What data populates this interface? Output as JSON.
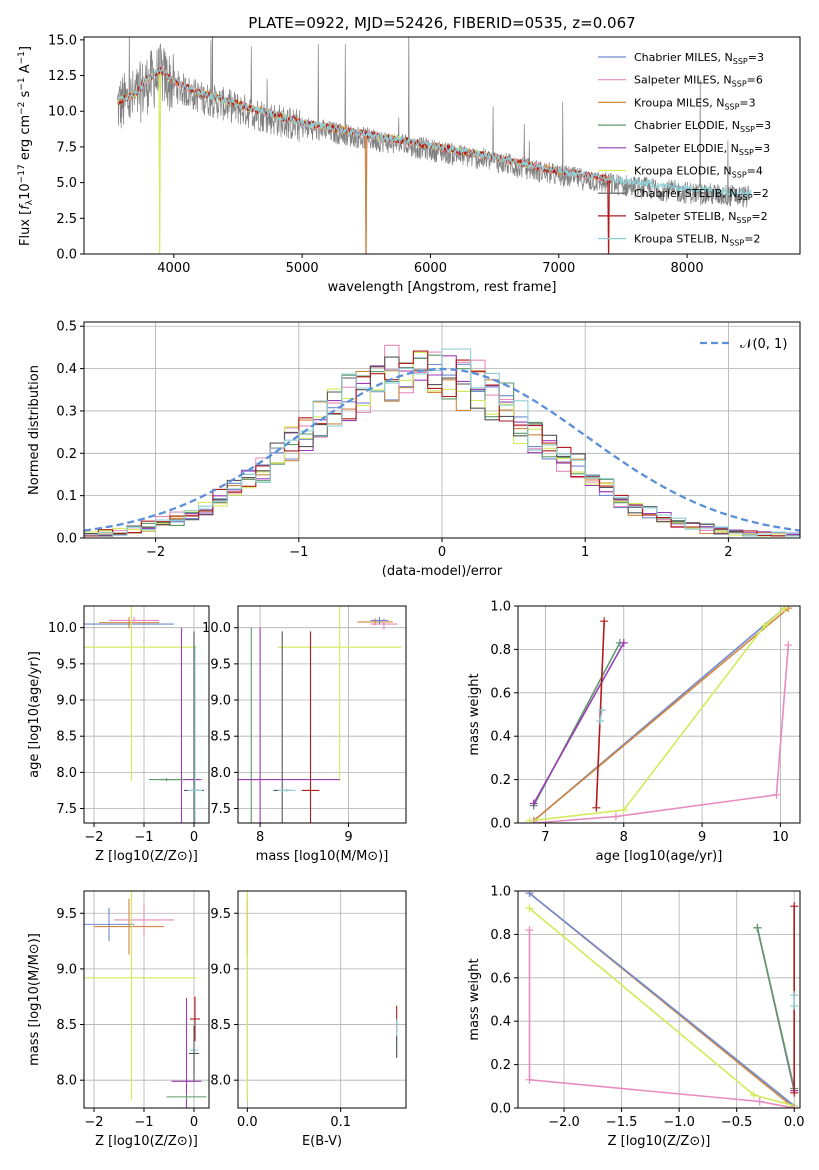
{
  "figure_title": "PLATE=0922, MJD=52426, FIBERID=0535, z=0.067",
  "colors": {
    "chabrier_miles": "#6f8ad1",
    "salpeter_miles": "#e68bbe",
    "kroupa_miles": "#d2873c",
    "chabrier_elodie": "#5e9a6a",
    "salpeter_elodie": "#9b3db7",
    "kroupa_elodie": "#d4ea5a",
    "chabrier_stelib": "#555555",
    "salpeter_stelib": "#b01c1c",
    "kroupa_stelib": "#8ecfd6",
    "data": "#808080",
    "normal": "#5b8fd9"
  },
  "chart_data": [
    {
      "id": "spectrum",
      "type": "line",
      "xlabel": "wavelength [Angstrom, rest frame]",
      "ylabel_parts": [
        "Flux [",
        "f",
        "λ",
        "10",
        "−17",
        " erg cm",
        "−2",
        " s",
        "−1",
        " A",
        "−1",
        "]"
      ],
      "xlim": [
        3300,
        8880
      ],
      "ylim": [
        0,
        15.2
      ],
      "xticks": [
        "4000",
        "5000",
        "6000",
        "7000",
        "8000"
      ],
      "yticks": [
        "0.0",
        "2.5",
        "5.0",
        "7.5",
        "10.0",
        "12.5",
        "15.0"
      ],
      "series": [
        {
          "key": "chabrier_miles",
          "name": "Chabrier MILES, N",
          "sub": "SSP",
          "suffix": "=3"
        },
        {
          "key": "salpeter_miles",
          "name": "Salpeter MILES, N",
          "sub": "SSP",
          "suffix": "=6"
        },
        {
          "key": "kroupa_miles",
          "name": "Kroupa MILES, N",
          "sub": "SSP",
          "suffix": "=3"
        },
        {
          "key": "chabrier_elodie",
          "name": "Chabrier ELODIE, N",
          "sub": "SSP",
          "suffix": "=3"
        },
        {
          "key": "salpeter_elodie",
          "name": "Salpeter ELODIE, N",
          "sub": "SSP",
          "suffix": "=3"
        },
        {
          "key": "kroupa_elodie",
          "name": "Kroupa ELODIE, N",
          "sub": "SSP",
          "suffix": "=4"
        },
        {
          "key": "chabrier_stelib",
          "name": "Chabrier STELIB, N",
          "sub": "SSP",
          "suffix": "=2"
        },
        {
          "key": "salpeter_stelib",
          "name": "Salpeter STELIB, N",
          "sub": "SSP",
          "suffix": "=2"
        },
        {
          "key": "kroupa_stelib",
          "name": "Kroupa STELIB, N",
          "sub": "SSP",
          "suffix": "=2"
        }
      ],
      "continuum": [
        [
          3560,
          10.4
        ],
        [
          3700,
          10.9
        ],
        [
          3800,
          12.0
        ],
        [
          3900,
          12.6
        ],
        [
          4000,
          11.8
        ],
        [
          4200,
          11.0
        ],
        [
          4500,
          10.2
        ],
        [
          5000,
          8.9
        ],
        [
          5500,
          8.1
        ],
        [
          6000,
          7.3
        ],
        [
          6500,
          6.5
        ],
        [
          7000,
          5.5
        ],
        [
          7500,
          4.8
        ],
        [
          8000,
          4.3
        ],
        [
          8480,
          4.0
        ]
      ],
      "model_lines": [
        {
          "key": "kroupa_elodie",
          "x0": 3560,
          "x1": 6790,
          "dip": 3890
        },
        {
          "key": "salpeter_miles",
          "x0": 3560,
          "x1": 7410,
          "dip": 5500
        },
        {
          "key": "kroupa_miles",
          "x0": 3560,
          "x1": 7400,
          "dip": 5500
        },
        {
          "key": "salpeter_stelib",
          "x0": 3560,
          "x1": 7410,
          "dip": 7390
        },
        {
          "key": "kroupa_stelib",
          "x0": 3560,
          "x1": 8500,
          "dip": 0
        }
      ]
    },
    {
      "id": "residuals",
      "type": "histogram",
      "xlabel": "(data-model)/error",
      "ylabel": "Normed distribution",
      "xlim": [
        -2.5,
        2.5
      ],
      "ylim": [
        0,
        0.51
      ],
      "xticks": [
        "−2",
        "−1",
        "0",
        "1",
        "2"
      ],
      "yticks": [
        "0.0",
        "0.1",
        "0.2",
        "0.3",
        "0.4",
        "0.5"
      ],
      "legend": "𝒩(0, 1)",
      "bin_width": 0.1
    },
    {
      "id": "age_vs_Z",
      "type": "errorbar",
      "xlabel": "Z [log10(Z/Z⊙)]",
      "ylabel": "age  [log10(age/yr)]",
      "xlim": [
        -2.2,
        0.3
      ],
      "ylim": [
        7.3,
        10.3
      ],
      "xticks": [
        "−2",
        "−1",
        "0"
      ],
      "yticks": [
        "7.5",
        "8.0",
        "8.5",
        "9.0",
        "9.5",
        "10.0"
      ],
      "points": [
        {
          "key": "chabrier_miles",
          "x": -1.3,
          "y": 10.05,
          "xerr": 0.9,
          "yerr": 0.05
        },
        {
          "key": "kroupa_miles",
          "x": -1.3,
          "y": 10.07,
          "xerr": 0.6,
          "yerr": 0.08
        },
        {
          "key": "salpeter_miles",
          "x": -1.2,
          "y": 10.1,
          "xerr": 0.5,
          "yerr": 0.05
        },
        {
          "key": "kroupa_elodie",
          "x": -1.25,
          "y": 9.73,
          "xerr": 1.3,
          "yerr": 1.85
        },
        {
          "key": "salpeter_elodie",
          "x": -0.25,
          "y": 7.9,
          "xerr": 0.4,
          "yerr": 2.1
        },
        {
          "key": "chabrier_elodie",
          "x": -0.55,
          "y": 7.9,
          "xerr": 0.35,
          "yerr": 0.02
        },
        {
          "key": "chabrier_stelib",
          "x": 0.0,
          "y": 7.75,
          "xerr": 0.2,
          "yerr": 2.2
        },
        {
          "key": "kroupa_stelib",
          "x": 0.02,
          "y": 7.75,
          "xerr": 0.15,
          "yerr": 2.0
        }
      ]
    },
    {
      "id": "age_vs_mass",
      "type": "errorbar",
      "xlabel": "mass [log10(M/M⊙)]",
      "xlim": [
        7.75,
        9.65
      ],
      "ylim": [
        7.3,
        10.3
      ],
      "xticks": [
        "8",
        "9"
      ],
      "yticks": [
        "7.5",
        "8.0",
        "8.5",
        "9.0",
        "9.5",
        "10.0"
      ],
      "points": [
        {
          "key": "kroupa_miles",
          "x": 9.3,
          "y": 10.08,
          "xerr": 0.2,
          "yerr": 0.05
        },
        {
          "key": "salpeter_miles",
          "x": 9.4,
          "y": 10.05,
          "xerr": 0.15,
          "yerr": 0.08
        },
        {
          "key": "chabrier_miles",
          "x": 9.35,
          "y": 10.1,
          "xerr": 0.1,
          "yerr": 0.05
        },
        {
          "key": "kroupa_elodie",
          "x": 8.9,
          "y": 9.73,
          "xerr": 0.7,
          "yerr": 1.85
        },
        {
          "key": "chabrier_elodie",
          "x": 7.9,
          "y": 7.9,
          "xerr": 0.05,
          "yerr": 2.1
        },
        {
          "key": "salpeter_elodie",
          "x": 8.0,
          "y": 7.9,
          "xerr": 0.9,
          "yerr": 2.1
        },
        {
          "key": "chabrier_stelib",
          "x": 8.25,
          "y": 7.75,
          "xerr": 0.1,
          "yerr": 2.2
        },
        {
          "key": "kroupa_stelib",
          "x": 8.3,
          "y": 7.75,
          "xerr": 0.1,
          "yerr": 0.02
        },
        {
          "key": "salpeter_stelib",
          "x": 8.57,
          "y": 7.75,
          "xerr": 0.1,
          "yerr": 2.2
        }
      ]
    },
    {
      "id": "weight_vs_age",
      "type": "line",
      "xlabel": "age  [log10(age/yr)]",
      "ylabel": "mass weight",
      "xlim": [
        6.65,
        10.25
      ],
      "ylim": [
        0,
        1.0
      ],
      "xticks": [
        "7",
        "8",
        "9",
        "10"
      ],
      "yticks": [
        "0.0",
        "0.2",
        "0.4",
        "0.6",
        "0.8",
        "1.0"
      ],
      "lines": [
        {
          "key": "chabrier_miles",
          "pts": [
            [
              6.85,
              0.01
            ],
            [
              10.05,
              0.99
            ]
          ]
        },
        {
          "key": "kroupa_miles",
          "pts": [
            [
              6.85,
              0.01
            ],
            [
              10.1,
              0.99
            ]
          ]
        },
        {
          "key": "kroupa_elodie",
          "pts": [
            [
              6.8,
              0.01
            ],
            [
              8.0,
              0.06
            ],
            [
              9.8,
              0.91
            ],
            [
              10.05,
              0.99
            ]
          ]
        },
        {
          "key": "salpeter_miles",
          "pts": [
            [
              6.85,
              0.0
            ],
            [
              7.9,
              0.03
            ],
            [
              9.95,
              0.13
            ],
            [
              10.1,
              0.82
            ]
          ]
        },
        {
          "key": "chabrier_elodie",
          "pts": [
            [
              6.85,
              0.08
            ],
            [
              7.95,
              0.83
            ]
          ]
        },
        {
          "key": "salpeter_elodie",
          "pts": [
            [
              6.85,
              0.09
            ],
            [
              8.0,
              0.83
            ]
          ]
        },
        {
          "key": "salpeter_stelib",
          "pts": [
            [
              7.65,
              0.07
            ],
            [
              7.75,
              0.93
            ]
          ]
        },
        {
          "key": "kroupa_stelib",
          "pts": [
            [
              7.7,
              0.47
            ],
            [
              7.72,
              0.52
            ]
          ]
        }
      ]
    },
    {
      "id": "mass_vs_Z",
      "type": "errorbar",
      "xlabel": "Z [log10(Z/Z⊙)]",
      "ylabel": "mass [log10(M/M⊙)]",
      "xlim": [
        -2.2,
        0.3
      ],
      "ylim": [
        7.75,
        9.7
      ],
      "xticks": [
        "−2",
        "−1",
        "0"
      ],
      "yticks": [
        "8.0",
        "8.5",
        "9.0",
        "9.5"
      ],
      "points": [
        {
          "key": "chabrier_miles",
          "x": -1.7,
          "y": 9.4,
          "xerr": 0.5,
          "yerr": 0.15
        },
        {
          "key": "kroupa_miles",
          "x": -1.3,
          "y": 9.38,
          "xerr": 0.7,
          "yerr": 0.25
        },
        {
          "key": "salpeter_miles",
          "x": -1.0,
          "y": 9.44,
          "xerr": 0.6,
          "yerr": 0.15
        },
        {
          "key": "kroupa_elodie",
          "x": -1.25,
          "y": 8.92,
          "xerr": 1.3,
          "yerr": 1.1
        },
        {
          "key": "salpeter_elodie",
          "x": -0.15,
          "y": 7.99,
          "xerr": 0.3,
          "yerr": 0.75
        },
        {
          "key": "chabrier_elodie",
          "x": -0.15,
          "y": 7.85,
          "xerr": 0.4,
          "yerr": 0.02
        },
        {
          "key": "salpeter_stelib",
          "x": 0.02,
          "y": 8.55,
          "xerr": 0.1,
          "yerr": 0.2
        },
        {
          "key": "kroupa_stelib",
          "x": 0.0,
          "y": 8.27,
          "xerr": 0.08,
          "yerr": 0.25
        },
        {
          "key": "chabrier_stelib",
          "x": 0.0,
          "y": 8.24,
          "xerr": 0.1,
          "yerr": 0.25
        }
      ]
    },
    {
      "id": "mass_vs_ebv",
      "type": "errorbar",
      "xlabel": "E(B-V)",
      "xlim": [
        -0.01,
        0.17
      ],
      "ylim": [
        7.75,
        9.7
      ],
      "xticks": [
        "0.0",
        "0.1"
      ],
      "yticks": [
        "8.0",
        "8.5",
        "9.0",
        "9.5"
      ],
      "points": [
        {
          "key": "salpeter_miles",
          "x": 0.0,
          "y": 9.4,
          "xerr": 0.0,
          "yerr": 0.2
        },
        {
          "key": "kroupa_miles",
          "x": 0.0,
          "y": 9.38,
          "xerr": 0.0,
          "yerr": 0.25
        },
        {
          "key": "kroupa_elodie",
          "x": 0.0,
          "y": 8.92,
          "xerr": 0.0,
          "yerr": 1.1
        },
        {
          "key": "salpeter_stelib",
          "x": 0.16,
          "y": 8.55,
          "xerr": 0.0,
          "yerr": 0.12
        },
        {
          "key": "kroupa_stelib",
          "x": 0.16,
          "y": 8.4,
          "xerr": 0.0,
          "yerr": 0.15
        },
        {
          "key": "chabrier_stelib",
          "x": 0.16,
          "y": 8.3,
          "xerr": 0.0,
          "yerr": 0.1
        }
      ]
    },
    {
      "id": "weight_vs_Z",
      "type": "line",
      "xlabel": "Z [log10(Z/Z⊙)]",
      "ylabel": "mass weight",
      "xlim": [
        -2.4,
        0.05
      ],
      "ylim": [
        0,
        1.0
      ],
      "xticks": [
        "−2.0",
        "−1.5",
        "−1.0",
        "−0.5",
        "0.0"
      ],
      "yticks": [
        "0.0",
        "0.2",
        "0.4",
        "0.6",
        "0.8",
        "1.0"
      ],
      "lines": [
        {
          "key": "kroupa_miles",
          "pts": [
            [
              -2.3,
              0.99
            ],
            [
              0.0,
              0.0
            ]
          ]
        },
        {
          "key": "chabrier_miles",
          "pts": [
            [
              -2.3,
              0.99
            ],
            [
              0.0,
              0.01
            ]
          ]
        },
        {
          "key": "kroupa_elodie",
          "pts": [
            [
              -2.3,
              0.92
            ],
            [
              -0.35,
              0.06
            ],
            [
              0.0,
              0.01
            ]
          ]
        },
        {
          "key": "salpeter_miles",
          "pts": [
            [
              -2.3,
              0.82
            ],
            [
              -2.3,
              0.13
            ],
            [
              -0.3,
              0.03
            ],
            [
              0.0,
              0.0
            ]
          ]
        },
        {
          "key": "salpeter_elodie",
          "pts": [
            [
              -0.32,
              0.83
            ],
            [
              0.0,
              0.08
            ]
          ]
        },
        {
          "key": "chabrier_elodie",
          "pts": [
            [
              -0.32,
              0.83
            ],
            [
              0.0,
              0.09
            ]
          ]
        },
        {
          "key": "salpeter_stelib",
          "pts": [
            [
              0.0,
              0.93
            ],
            [
              0.0,
              0.07
            ]
          ]
        },
        {
          "key": "kroupa_stelib",
          "pts": [
            [
              0.0,
              0.52
            ],
            [
              0.0,
              0.47
            ]
          ]
        }
      ]
    }
  ]
}
